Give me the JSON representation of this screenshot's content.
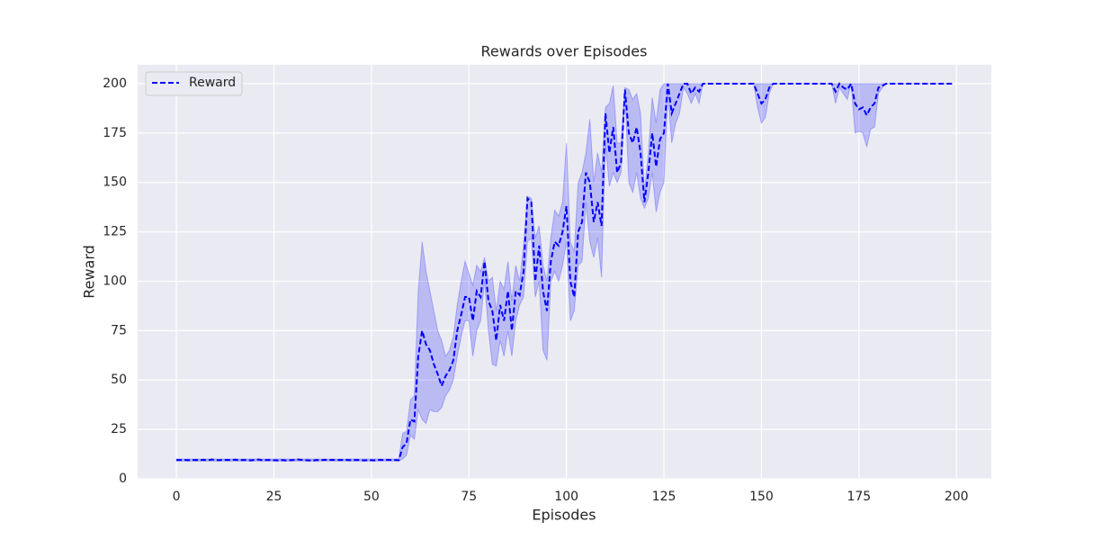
{
  "chart_data": {
    "type": "line",
    "title": "Rewards over Episodes",
    "xlabel": "Episodes",
    "ylabel": "Reward",
    "xlim": [
      -9.95,
      208.95
    ],
    "ylim": [
      0,
      209.55
    ],
    "xticks": [
      0,
      25,
      50,
      75,
      100,
      125,
      150,
      175,
      200
    ],
    "yticks": [
      0,
      25,
      50,
      75,
      100,
      125,
      150,
      175,
      200
    ],
    "grid": true,
    "legend": "upper left",
    "band_color": "#0000ff",
    "x": [
      0,
      1,
      2,
      3,
      4,
      5,
      6,
      7,
      8,
      9,
      10,
      11,
      12,
      13,
      14,
      15,
      16,
      17,
      18,
      19,
      20,
      21,
      22,
      23,
      24,
      25,
      26,
      27,
      28,
      29,
      30,
      31,
      32,
      33,
      34,
      35,
      36,
      37,
      38,
      39,
      40,
      41,
      42,
      43,
      44,
      45,
      46,
      47,
      48,
      49,
      50,
      51,
      52,
      53,
      54,
      55,
      56,
      57,
      58,
      59,
      60,
      61,
      62,
      63,
      64,
      65,
      66,
      67,
      68,
      69,
      70,
      71,
      72,
      73,
      74,
      75,
      76,
      77,
      78,
      79,
      80,
      81,
      82,
      83,
      84,
      85,
      86,
      87,
      88,
      89,
      90,
      91,
      92,
      93,
      94,
      95,
      96,
      97,
      98,
      99,
      100,
      101,
      102,
      103,
      104,
      105,
      106,
      107,
      108,
      109,
      110,
      111,
      112,
      113,
      114,
      115,
      116,
      117,
      118,
      119,
      120,
      121,
      122,
      123,
      124,
      125,
      126,
      127,
      128,
      129,
      130,
      131,
      132,
      133,
      134,
      135,
      136,
      137,
      138,
      139,
      140,
      141,
      142,
      143,
      144,
      145,
      146,
      147,
      148,
      149,
      150,
      151,
      152,
      153,
      154,
      155,
      156,
      157,
      158,
      159,
      160,
      161,
      162,
      163,
      164,
      165,
      166,
      167,
      168,
      169,
      170,
      171,
      172,
      173,
      174,
      175,
      176,
      177,
      178,
      179,
      180,
      181,
      182,
      183,
      184,
      185,
      186,
      187,
      188,
      189,
      190,
      191,
      192,
      193,
      194,
      195,
      196,
      197,
      198,
      199
    ],
    "series": [
      {
        "name": "Reward",
        "color": "#0000ff",
        "values": [
          9.5,
          9.5,
          9.6,
          9.4,
          9.5,
          9.5,
          9.4,
          9.6,
          9.3,
          9.8,
          9.5,
          9.4,
          9.6,
          9.5,
          9.5,
          9.7,
          9.4,
          9.5,
          9.5,
          9.3,
          9.6,
          9.8,
          9.4,
          9.5,
          9.5,
          9.4,
          9.3,
          9.5,
          9.3,
          9.4,
          9.5,
          9.8,
          9.6,
          9.4,
          9.3,
          9.2,
          9.5,
          9.4,
          9.6,
          9.5,
          9.6,
          9.5,
          9.5,
          9.6,
          9.5,
          9.4,
          9.5,
          9.5,
          9.3,
          9.4,
          9.4,
          9.3,
          9.6,
          9.5,
          9.6,
          9.5,
          9.5,
          9.4,
          16,
          18,
          30,
          29,
          62,
          75,
          68,
          65,
          58,
          53,
          47,
          52,
          55,
          60,
          75,
          83,
          92,
          92,
          80,
          95,
          92,
          110,
          90,
          85,
          70,
          88,
          80,
          95,
          75,
          95,
          93,
          105,
          142,
          140,
          100,
          118,
          95,
          85,
          110,
          120,
          118,
          125,
          138,
          100,
          92,
          125,
          130,
          155,
          150,
          130,
          140,
          128,
          185,
          165,
          178,
          155,
          160,
          197,
          175,
          170,
          178,
          165,
          140,
          155,
          175,
          158,
          172,
          175,
          200,
          185,
          190,
          195,
          200,
          200,
          195,
          198,
          196,
          200,
          200,
          200,
          200,
          200,
          200,
          200,
          200,
          200,
          200,
          200,
          200,
          200,
          200,
          195,
          190,
          192,
          198,
          200,
          200,
          200,
          200,
          200,
          200,
          200,
          200,
          200,
          200,
          200,
          200,
          200,
          200,
          200,
          200,
          196,
          200,
          198,
          197,
          200,
          190,
          187,
          188,
          184,
          188,
          190,
          198,
          199,
          200,
          200,
          200,
          200,
          200,
          200,
          200,
          200,
          200,
          200,
          200,
          200,
          200,
          200,
          200,
          200,
          200,
          200
        ],
        "lower": [
          9,
          9,
          9,
          9,
          9,
          9,
          9,
          9,
          9,
          9,
          9,
          9,
          9,
          9,
          9,
          9,
          9,
          9,
          9,
          9,
          9,
          9,
          9,
          9,
          9,
          9,
          9,
          9,
          9,
          9,
          9,
          9,
          9,
          9,
          9,
          9,
          9,
          9,
          9,
          9,
          9,
          9,
          9,
          9,
          9,
          9,
          9,
          9,
          9,
          9,
          9,
          9,
          9,
          9,
          9,
          9,
          9,
          9,
          10,
          12,
          22,
          20,
          35,
          30,
          28,
          35,
          34,
          34,
          36,
          42,
          45,
          50,
          62,
          72,
          80,
          80,
          62,
          75,
          80,
          100,
          75,
          58,
          57,
          70,
          62,
          75,
          62,
          80,
          88,
          92,
          120,
          122,
          92,
          100,
          65,
          60,
          100,
          105,
          100,
          108,
          120,
          80,
          85,
          108,
          110,
          140,
          120,
          112,
          122,
          102,
          170,
          148,
          155,
          150,
          155,
          195,
          150,
          145,
          155,
          142,
          137,
          142,
          155,
          135,
          145,
          150,
          195,
          170,
          180,
          185,
          198,
          195,
          190,
          195,
          190,
          200,
          200,
          200,
          200,
          200,
          200,
          200,
          200,
          200,
          200,
          200,
          200,
          200,
          200,
          188,
          180,
          183,
          195,
          200,
          200,
          200,
          200,
          200,
          200,
          200,
          200,
          200,
          200,
          200,
          200,
          200,
          200,
          200,
          200,
          190,
          198,
          195,
          192,
          200,
          175,
          176,
          175,
          168,
          177,
          178,
          195,
          198,
          200,
          200,
          200,
          200,
          200,
          200,
          200,
          200,
          200,
          200,
          200,
          200,
          200,
          200,
          200,
          200,
          200,
          200
        ],
        "upper": [
          10,
          10,
          10,
          10,
          10,
          10,
          10,
          10,
          10,
          10,
          10,
          10,
          10,
          10,
          10,
          10,
          10,
          10,
          10,
          10,
          10,
          10,
          10,
          10,
          10,
          10,
          10,
          10,
          10,
          10,
          10,
          10,
          10,
          10,
          10,
          10,
          10,
          10,
          10,
          10,
          10,
          10,
          10,
          10,
          10,
          10,
          10,
          10,
          10,
          10,
          10,
          10,
          10,
          10,
          10,
          10,
          10,
          10,
          23,
          24,
          40,
          42,
          95,
          120,
          105,
          95,
          85,
          75,
          70,
          62,
          65,
          72,
          88,
          100,
          110,
          104,
          98,
          108,
          105,
          112,
          100,
          102,
          85,
          100,
          96,
          110,
          90,
          108,
          100,
          118,
          143,
          142,
          122,
          128,
          108,
          100,
          122,
          136,
          133,
          140,
          170,
          120,
          115,
          150,
          155,
          165,
          182,
          150,
          165,
          155,
          188,
          190,
          199,
          170,
          170,
          198,
          197,
          192,
          195,
          185,
          145,
          165,
          193,
          180,
          197,
          200,
          200,
          200,
          200,
          200,
          200,
          200,
          200,
          200,
          200,
          200,
          200,
          200,
          200,
          200,
          200,
          200,
          200,
          200,
          200,
          200,
          200,
          200,
          200,
          200,
          200,
          200,
          200,
          200,
          200,
          200,
          200,
          200,
          200,
          200,
          200,
          200,
          200,
          200,
          200,
          200,
          200,
          200,
          200,
          200,
          200,
          200,
          200,
          200,
          200,
          200,
          200,
          200,
          200,
          200,
          200,
          200,
          200,
          200,
          200,
          200,
          200,
          200,
          200,
          200,
          200,
          200,
          200,
          200,
          200,
          200,
          200,
          200,
          200,
          200
        ]
      }
    ]
  }
}
